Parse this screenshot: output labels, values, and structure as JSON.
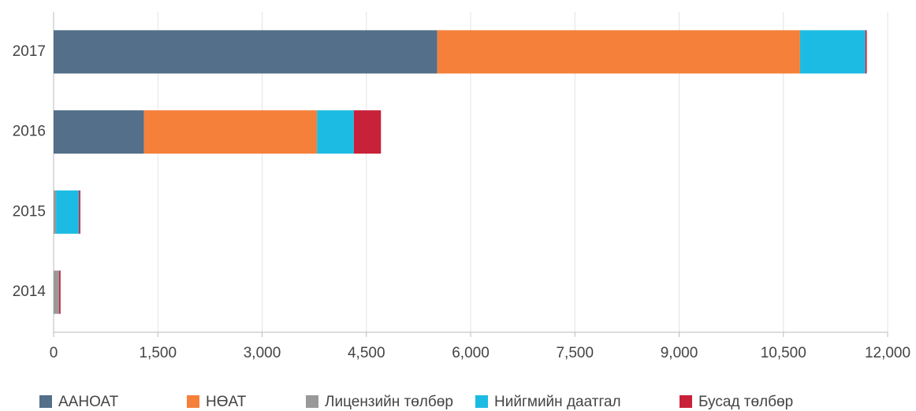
{
  "chart_data": {
    "type": "stacked-barh",
    "categories": [
      "2017",
      "2016",
      "2015",
      "2014"
    ],
    "series": [
      {
        "name": "ААНОАТ",
        "color": "#536f89",
        "values": [
          5520,
          1300,
          0,
          0
        ]
      },
      {
        "name": "НӨАТ",
        "color": "#f5803a",
        "values": [
          5220,
          2490,
          0,
          0
        ]
      },
      {
        "name": "Лицензийн төлбөр",
        "color": "#999999",
        "values": [
          0,
          0,
          35,
          80
        ]
      },
      {
        "name": "Нийгмийн даатгал",
        "color": "#1cbbe3",
        "values": [
          940,
          530,
          330,
          0
        ]
      },
      {
        "name": "Бусад төлбөр",
        "color": "#c8213a",
        "values": [
          20,
          390,
          20,
          20
        ]
      }
    ],
    "xlim": [
      0,
      12000
    ],
    "xticks": [
      0,
      {
        "value": 1500,
        "label": "1,500"
      },
      {
        "value": 3000,
        "label": "3,000"
      },
      {
        "value": 4500,
        "label": "4,500"
      },
      {
        "value": 6000,
        "label": "6,000"
      },
      {
        "value": 7500,
        "label": "7,500"
      },
      {
        "value": 9000,
        "label": "9,000"
      },
      {
        "value": 10500,
        "label": "10,500"
      },
      {
        "value": 12000,
        "label": "12,000"
      }
    ],
    "grid": true,
    "legend": "bottom"
  }
}
